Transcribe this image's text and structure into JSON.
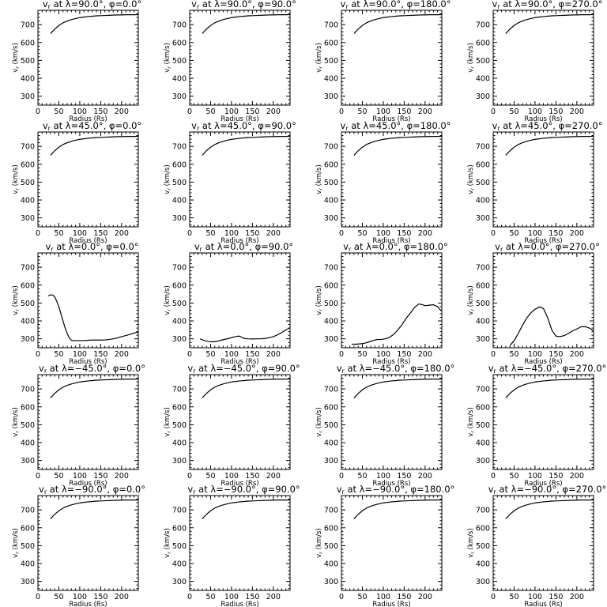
{
  "figure": {
    "xlabel": "Radius (Rs)",
    "ylabel": "v_r (km/s)",
    "xticks": [
      "0",
      "50",
      "100",
      "150",
      "200"
    ],
    "yticks": [
      "300",
      "400",
      "500",
      "600",
      "700"
    ]
  },
  "chart_data": [
    {
      "type": "line",
      "title": "v_r at λ=90.0°, φ=0.0°",
      "lat": "90.0",
      "lon": "0.0",
      "xlabel": "Radius (Rs)",
      "ylabel": "v_r (km/s)",
      "xlim": [
        0,
        240
      ],
      "ylim": [
        250,
        780
      ],
      "x": [
        30,
        40,
        50,
        60,
        70,
        80,
        90,
        100,
        110,
        120,
        130,
        140,
        150,
        160,
        170,
        180,
        190,
        200,
        210,
        220,
        230,
        240
      ],
      "y": [
        650,
        675,
        695,
        710,
        720,
        728,
        734,
        739,
        742,
        745,
        747,
        749,
        750,
        751,
        752,
        753,
        754,
        754,
        755,
        755,
        755,
        756
      ]
    },
    {
      "type": "line",
      "title": "v_r at λ=90.0°, φ=90.0°",
      "lat": "90.0",
      "lon": "90.0",
      "xlabel": "Radius (Rs)",
      "ylabel": "v_r (km/s)",
      "xlim": [
        0,
        240
      ],
      "ylim": [
        250,
        780
      ],
      "x": [
        30,
        40,
        50,
        60,
        70,
        80,
        90,
        100,
        110,
        120,
        130,
        140,
        150,
        160,
        170,
        180,
        190,
        200,
        210,
        220,
        230,
        240
      ],
      "y": [
        650,
        675,
        695,
        710,
        720,
        728,
        734,
        739,
        742,
        745,
        747,
        749,
        750,
        751,
        752,
        753,
        754,
        754,
        755,
        755,
        755,
        756
      ]
    },
    {
      "type": "line",
      "title": "v_r at λ=90.0°, φ=180.0°",
      "lat": "90.0",
      "lon": "180.0",
      "xlabel": "Radius (Rs)",
      "ylabel": "v_r (km/s)",
      "xlim": [
        0,
        240
      ],
      "ylim": [
        250,
        780
      ],
      "x": [
        30,
        40,
        50,
        60,
        70,
        80,
        90,
        100,
        110,
        120,
        130,
        140,
        150,
        160,
        170,
        180,
        190,
        200,
        210,
        220,
        230,
        240
      ],
      "y": [
        650,
        675,
        695,
        710,
        720,
        728,
        734,
        739,
        742,
        745,
        747,
        749,
        750,
        751,
        752,
        753,
        754,
        754,
        755,
        755,
        755,
        756
      ]
    },
    {
      "type": "line",
      "title": "v_r at λ=90.0°, φ=270.0°",
      "lat": "90.0",
      "lon": "270.0",
      "xlabel": "Radius (Rs)",
      "ylabel": "v_r (km/s)",
      "xlim": [
        0,
        240
      ],
      "ylim": [
        250,
        780
      ],
      "x": [
        30,
        40,
        50,
        60,
        70,
        80,
        90,
        100,
        110,
        120,
        130,
        140,
        150,
        160,
        170,
        180,
        190,
        200,
        210,
        220,
        230,
        240
      ],
      "y": [
        650,
        675,
        695,
        710,
        720,
        728,
        734,
        739,
        742,
        745,
        747,
        749,
        750,
        751,
        752,
        753,
        754,
        754,
        755,
        755,
        755,
        756
      ]
    },
    {
      "type": "line",
      "title": "v_r at λ=45.0°, φ=0.0°",
      "lat": "45.0",
      "lon": "0.0",
      "xlabel": "Radius (Rs)",
      "ylabel": "v_r (km/s)",
      "xlim": [
        0,
        240
      ],
      "ylim": [
        250,
        780
      ],
      "x": [
        30,
        40,
        50,
        60,
        70,
        80,
        90,
        100,
        110,
        120,
        130,
        140,
        150,
        160,
        170,
        180,
        190,
        200,
        210,
        220,
        230,
        240
      ],
      "y": [
        650,
        675,
        695,
        710,
        720,
        728,
        734,
        739,
        742,
        745,
        747,
        749,
        750,
        751,
        752,
        753,
        754,
        754,
        755,
        755,
        755,
        756
      ]
    },
    {
      "type": "line",
      "title": "v_r at λ=45.0°, φ=90.0°",
      "lat": "45.0",
      "lon": "90.0",
      "xlabel": "Radius (Rs)",
      "ylabel": "v_r (km/s)",
      "xlim": [
        0,
        240
      ],
      "ylim": [
        250,
        780
      ],
      "x": [
        30,
        40,
        50,
        60,
        70,
        80,
        90,
        100,
        110,
        120,
        130,
        140,
        150,
        160,
        170,
        180,
        190,
        200,
        210,
        220,
        230,
        240
      ],
      "y": [
        650,
        675,
        695,
        710,
        720,
        728,
        734,
        739,
        742,
        745,
        747,
        749,
        750,
        751,
        752,
        753,
        754,
        754,
        755,
        755,
        755,
        756
      ]
    },
    {
      "type": "line",
      "title": "v_r at λ=45.0°, φ=180.0°",
      "lat": "45.0",
      "lon": "180.0",
      "xlabel": "Radius (Rs)",
      "ylabel": "v_r (km/s)",
      "xlim": [
        0,
        240
      ],
      "ylim": [
        250,
        780
      ],
      "x": [
        30,
        40,
        50,
        60,
        70,
        80,
        90,
        100,
        110,
        120,
        130,
        140,
        150,
        160,
        170,
        180,
        190,
        200,
        210,
        220,
        230,
        240
      ],
      "y": [
        650,
        675,
        695,
        710,
        720,
        728,
        734,
        739,
        742,
        745,
        747,
        749,
        750,
        751,
        752,
        753,
        754,
        754,
        755,
        755,
        755,
        756
      ]
    },
    {
      "type": "line",
      "title": "v_r at λ=45.0°, φ=270.0°",
      "lat": "45.0",
      "lon": "270.0",
      "xlabel": "Radius (Rs)",
      "ylabel": "v_r (km/s)",
      "xlim": [
        0,
        240
      ],
      "ylim": [
        250,
        780
      ],
      "x": [
        30,
        40,
        50,
        60,
        70,
        80,
        90,
        100,
        110,
        120,
        130,
        140,
        150,
        160,
        170,
        180,
        190,
        200,
        210,
        220,
        230,
        240
      ],
      "y": [
        650,
        675,
        695,
        710,
        720,
        728,
        734,
        739,
        742,
        745,
        747,
        749,
        750,
        751,
        752,
        753,
        754,
        754,
        755,
        755,
        755,
        756
      ]
    },
    {
      "type": "line",
      "title": "v_r at λ=0.0°, φ=0.0°",
      "lat": "0.0",
      "lon": "0.0",
      "xlabel": "Radius (Rs)",
      "ylabel": "v_r (km/s)",
      "xlim": [
        0,
        240
      ],
      "ylim": [
        250,
        780
      ],
      "x": [
        25,
        30,
        35,
        40,
        45,
        50,
        55,
        60,
        65,
        70,
        75,
        80,
        85,
        90,
        100,
        110,
        120,
        130,
        140,
        150,
        160,
        170,
        180,
        190,
        200,
        210,
        220,
        230,
        240
      ],
      "y": [
        540,
        545,
        545,
        535,
        510,
        480,
        440,
        400,
        360,
        330,
        305,
        292,
        290,
        290,
        290,
        290,
        292,
        293,
        293,
        293,
        294,
        296,
        300,
        305,
        312,
        318,
        325,
        332,
        338
      ]
    },
    {
      "type": "line",
      "title": "v_r at λ=0.0°, φ=90.0°",
      "lat": "0.0",
      "lon": "90.0",
      "xlabel": "Radius (Rs)",
      "ylabel": "v_r (km/s)",
      "xlim": [
        0,
        240
      ],
      "ylim": [
        250,
        780
      ],
      "x": [
        25,
        35,
        45,
        55,
        65,
        75,
        85,
        95,
        105,
        115,
        120,
        125,
        130,
        140,
        150,
        160,
        170,
        180,
        190,
        200,
        210,
        220,
        230,
        240
      ],
      "y": [
        300,
        290,
        285,
        283,
        286,
        292,
        298,
        303,
        310,
        315,
        314,
        308,
        302,
        300,
        299,
        300,
        300,
        302,
        306,
        312,
        322,
        335,
        350,
        362
      ]
    },
    {
      "type": "line",
      "title": "v_r at λ=0.0°, φ=180.0°",
      "lat": "0.0",
      "lon": "180.0",
      "xlabel": "Radius (Rs)",
      "ylabel": "v_r (km/s)",
      "xlim": [
        0,
        240
      ],
      "ylim": [
        250,
        780
      ],
      "x": [
        25,
        35,
        45,
        55,
        65,
        75,
        85,
        95,
        105,
        115,
        125,
        135,
        145,
        155,
        165,
        175,
        185,
        195,
        200,
        210,
        220,
        230,
        235,
        240
      ],
      "y": [
        270,
        270,
        272,
        275,
        282,
        290,
        296,
        296,
        300,
        308,
        325,
        350,
        380,
        415,
        445,
        475,
        495,
        490,
        485,
        488,
        490,
        480,
        465,
        455
      ]
    },
    {
      "type": "line",
      "title": "v_r at λ=0.0°, φ=270.0°",
      "lat": "0.0",
      "lon": "270.0",
      "xlabel": "Radius (Rs)",
      "ylabel": "v_r (km/s)",
      "xlim": [
        0,
        240
      ],
      "ylim": [
        250,
        780
      ],
      "x": [
        40,
        50,
        60,
        70,
        80,
        90,
        100,
        110,
        120,
        130,
        140,
        150,
        160,
        170,
        180,
        190,
        200,
        210,
        220,
        230,
        240
      ],
      "y": [
        262,
        290,
        330,
        375,
        415,
        445,
        465,
        478,
        470,
        420,
        350,
        315,
        312,
        318,
        330,
        345,
        355,
        367,
        368,
        360,
        345
      ]
    },
    {
      "type": "line",
      "title": "v_r at λ=−45.0°, φ=0.0°",
      "lat": "−45.0",
      "lon": "0.0",
      "xlabel": "Radius (Rs)",
      "ylabel": "v_r (km/s)",
      "xlim": [
        0,
        240
      ],
      "ylim": [
        250,
        780
      ],
      "x": [
        30,
        40,
        50,
        60,
        70,
        80,
        90,
        100,
        110,
        120,
        130,
        140,
        150,
        160,
        170,
        180,
        190,
        200,
        210,
        220,
        230,
        240
      ],
      "y": [
        650,
        675,
        695,
        710,
        720,
        728,
        734,
        739,
        742,
        745,
        747,
        749,
        750,
        751,
        752,
        753,
        754,
        754,
        755,
        755,
        755,
        756
      ]
    },
    {
      "type": "line",
      "title": "v_r at λ=−45.0°, φ=90.0°",
      "lat": "−45.0",
      "lon": "90.0",
      "xlabel": "Radius (Rs)",
      "ylabel": "v_r (km/s)",
      "xlim": [
        0,
        240
      ],
      "ylim": [
        250,
        780
      ],
      "x": [
        30,
        40,
        50,
        60,
        70,
        80,
        90,
        100,
        110,
        120,
        130,
        140,
        150,
        160,
        170,
        180,
        190,
        200,
        210,
        220,
        230,
        240
      ],
      "y": [
        650,
        675,
        695,
        710,
        720,
        728,
        734,
        739,
        742,
        745,
        747,
        749,
        750,
        751,
        752,
        753,
        754,
        754,
        755,
        755,
        755,
        756
      ]
    },
    {
      "type": "line",
      "title": "v_r at λ=−45.0°, φ=180.0°",
      "lat": "−45.0",
      "lon": "180.0",
      "xlabel": "Radius (Rs)",
      "ylabel": "v_r (km/s)",
      "xlim": [
        0,
        240
      ],
      "ylim": [
        250,
        780
      ],
      "x": [
        30,
        40,
        50,
        60,
        70,
        80,
        90,
        100,
        110,
        120,
        130,
        140,
        150,
        160,
        170,
        180,
        190,
        200,
        210,
        220,
        230,
        240
      ],
      "y": [
        650,
        675,
        695,
        710,
        720,
        728,
        734,
        739,
        742,
        745,
        747,
        749,
        750,
        751,
        752,
        753,
        754,
        754,
        755,
        755,
        755,
        756
      ]
    },
    {
      "type": "line",
      "title": "v_r at λ=−45.0°, φ=270.0°",
      "lat": "−45.0",
      "lon": "270.0",
      "xlabel": "Radius (Rs)",
      "ylabel": "v_r (km/s)",
      "xlim": [
        0,
        240
      ],
      "ylim": [
        250,
        780
      ],
      "x": [
        30,
        40,
        50,
        60,
        70,
        80,
        90,
        100,
        110,
        120,
        130,
        140,
        150,
        160,
        170,
        180,
        190,
        200,
        210,
        220,
        230,
        240
      ],
      "y": [
        650,
        675,
        695,
        710,
        720,
        728,
        734,
        739,
        742,
        745,
        747,
        749,
        750,
        751,
        752,
        753,
        754,
        754,
        755,
        755,
        755,
        756
      ]
    },
    {
      "type": "line",
      "title": "v_r at λ=−90.0°, φ=0.0°",
      "lat": "−90.0",
      "lon": "0.0",
      "xlabel": "Radius (Rs)",
      "ylabel": "v_r (km/s)",
      "xlim": [
        0,
        240
      ],
      "ylim": [
        250,
        780
      ],
      "x": [
        30,
        40,
        50,
        60,
        70,
        80,
        90,
        100,
        110,
        120,
        130,
        140,
        150,
        160,
        170,
        180,
        190,
        200,
        210,
        220,
        230,
        240
      ],
      "y": [
        650,
        675,
        695,
        710,
        720,
        728,
        734,
        739,
        742,
        745,
        747,
        749,
        750,
        751,
        752,
        753,
        754,
        754,
        755,
        755,
        755,
        756
      ]
    },
    {
      "type": "line",
      "title": "v_r at λ=−90.0°, φ=90.0°",
      "lat": "−90.0",
      "lon": "90.0",
      "xlabel": "Radius (Rs)",
      "ylabel": "v_r (km/s)",
      "xlim": [
        0,
        240
      ],
      "ylim": [
        250,
        780
      ],
      "x": [
        30,
        40,
        50,
        60,
        70,
        80,
        90,
        100,
        110,
        120,
        130,
        140,
        150,
        160,
        170,
        180,
        190,
        200,
        210,
        220,
        230,
        240
      ],
      "y": [
        650,
        675,
        695,
        710,
        720,
        728,
        734,
        739,
        742,
        745,
        747,
        749,
        750,
        751,
        752,
        753,
        754,
        754,
        755,
        755,
        755,
        756
      ]
    },
    {
      "type": "line",
      "title": "v_r at λ=−90.0°, φ=180.0°",
      "lat": "−90.0",
      "lon": "180.0",
      "xlabel": "Radius (Rs)",
      "ylabel": "v_r (km/s)",
      "xlim": [
        0,
        240
      ],
      "ylim": [
        250,
        780
      ],
      "x": [
        30,
        40,
        50,
        60,
        70,
        80,
        90,
        100,
        110,
        120,
        130,
        140,
        150,
        160,
        170,
        180,
        190,
        200,
        210,
        220,
        230,
        240
      ],
      "y": [
        650,
        675,
        695,
        710,
        720,
        728,
        734,
        739,
        742,
        745,
        747,
        749,
        750,
        751,
        752,
        753,
        754,
        754,
        755,
        755,
        755,
        756
      ]
    },
    {
      "type": "line",
      "title": "v_r at λ=−90.0°, φ=270.0°",
      "lat": "−90.0",
      "lon": "270.0",
      "xlabel": "Radius (Rs)",
      "ylabel": "v_r (km/s)",
      "xlim": [
        0,
        240
      ],
      "ylim": [
        250,
        780
      ],
      "x": [
        30,
        40,
        50,
        60,
        70,
        80,
        90,
        100,
        110,
        120,
        130,
        140,
        150,
        160,
        170,
        180,
        190,
        200,
        210,
        220,
        230,
        240
      ],
      "y": [
        650,
        675,
        695,
        710,
        720,
        728,
        734,
        739,
        742,
        745,
        747,
        749,
        750,
        751,
        752,
        753,
        754,
        754,
        755,
        755,
        755,
        756
      ]
    }
  ]
}
